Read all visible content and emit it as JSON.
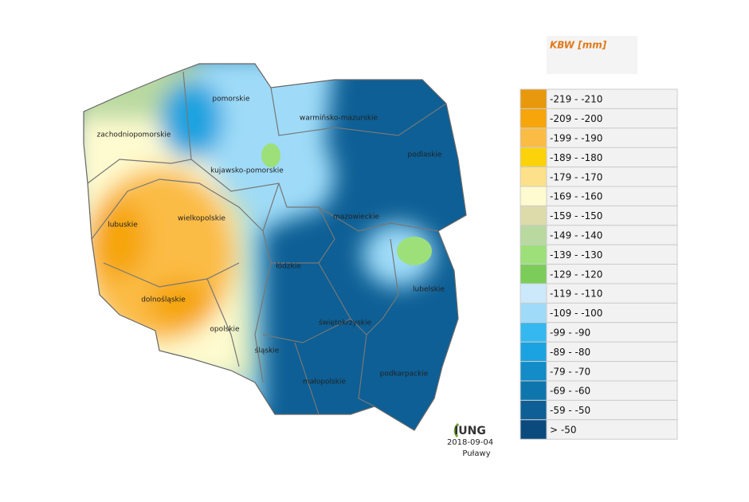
{
  "legend": {
    "title": "KBW [mm]",
    "items": [
      {
        "label": "-219 - -210",
        "color": "#e8980c"
      },
      {
        "label": "-209 - -200",
        "color": "#f6a50a"
      },
      {
        "label": "-199 - -190",
        "color": "#fbbc45"
      },
      {
        "label": "-189 - -180",
        "color": "#fcd20a"
      },
      {
        "label": "-179 - -170",
        "color": "#fde08a"
      },
      {
        "label": "-169 - -160",
        "color": "#fefbd0"
      },
      {
        "label": "-159 - -150",
        "color": "#dedbaa"
      },
      {
        "label": "-149 - -140",
        "color": "#b9d9a0"
      },
      {
        "label": "-139 - -130",
        "color": "#9de07a"
      },
      {
        "label": "-129 - -120",
        "color": "#7ccc5a"
      },
      {
        "label": "-119 - -110",
        "color": "#cce9fb"
      },
      {
        "label": "-109 - -100",
        "color": "#9fdbf8"
      },
      {
        "label": "-99 - -90",
        "color": "#35b8f0"
      },
      {
        "label": "-89 - -80",
        "color": "#1aa3e0"
      },
      {
        "label": "-79 - -70",
        "color": "#138cc8"
      },
      {
        "label": "-69 - -60",
        "color": "#0f75ad"
      },
      {
        "label": "-59 - -50",
        "color": "#0d5f95"
      },
      {
        "label": "> -50",
        "color": "#0b4a7c"
      }
    ]
  },
  "regions": [
    "pomorskie",
    "warmińsko-mazurskie",
    "podlaskie",
    "zachodniopomorskie",
    "kujawsko-pomorskie",
    "wielkopolskie",
    "lubuskie",
    "mazowieckie",
    "łódzkie",
    "lubelskie",
    "dolnośląskie",
    "opolskie",
    "świętokrzyskie",
    "śląskie",
    "małopolskie",
    "podkarpackie"
  ],
  "logo": "IUNG",
  "date": "2018-09-04",
  "place": "Puławy"
}
